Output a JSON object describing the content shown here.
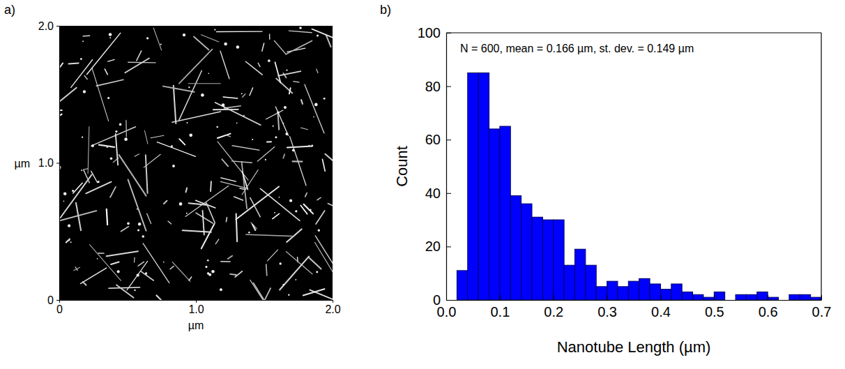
{
  "chart_data": [
    {
      "type": "image",
      "panel": "a)",
      "x_label": "µm",
      "y_label": "µm",
      "xlim": [
        0,
        2
      ],
      "ylim": [
        0,
        2
      ],
      "xticks": [
        0,
        {
          "value": 1,
          "label": "1.0"
        },
        {
          "value": 2,
          "label": "2.0"
        }
      ],
      "yticks": [
        0,
        {
          "value": 1,
          "label": "1.0"
        },
        {
          "value": 2,
          "label": "2.0"
        }
      ],
      "color": "#000000"
    },
    {
      "type": "histogram",
      "panel": "b)",
      "annotation": "N = 600, mean = 0.166 µm, st. dev. = 0.149 µm",
      "x_label": "Nanotube Length (µm)",
      "y_label": "Count",
      "bins": [
        0.02,
        0.04,
        0.06,
        0.08,
        0.1,
        0.12,
        0.14,
        0.16,
        0.18,
        0.2,
        0.22,
        0.24,
        0.26,
        0.28,
        0.3,
        0.32,
        0.34,
        0.36,
        0.38,
        0.4,
        0.42,
        0.44,
        0.46,
        0.48,
        0.5,
        0.52,
        0.54,
        0.56,
        0.58,
        0.6,
        0.62,
        0.64,
        0.66,
        0.68,
        0.7
      ],
      "counts": [
        11,
        85,
        85,
        64,
        65,
        39,
        36,
        31,
        30,
        30,
        13,
        19,
        13,
        5,
        7,
        5,
        7,
        8,
        6,
        4,
        6,
        3,
        2,
        1,
        3,
        0,
        2,
        2,
        3,
        1,
        0,
        2,
        2,
        1
      ],
      "color": "#0000ff",
      "xlim": [
        0,
        0.7
      ],
      "ylim": [
        0,
        100
      ],
      "xticks": [
        {
          "value": 0,
          "label": "0.0"
        },
        0.1,
        0.2,
        0.3,
        0.4,
        0.5,
        0.6,
        0.7
      ],
      "yticks": [
        0,
        20,
        40,
        60,
        80,
        100
      ]
    }
  ]
}
